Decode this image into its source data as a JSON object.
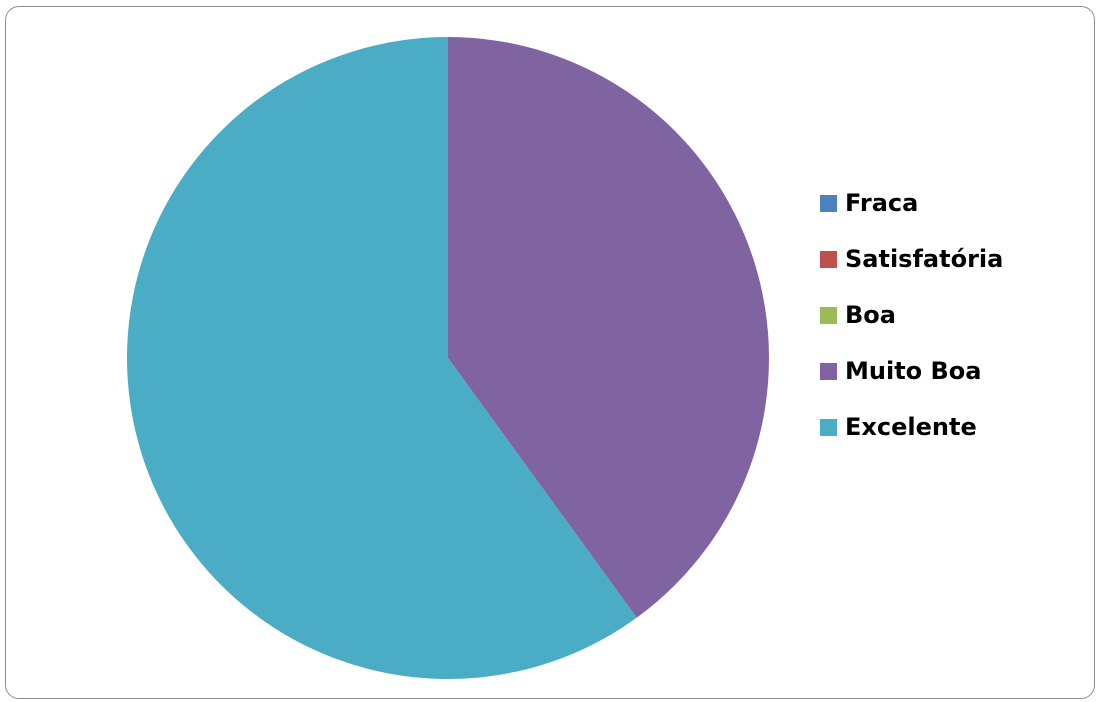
{
  "chart_data": {
    "type": "pie",
    "title": "",
    "categories": [
      "Fraca",
      "Satisfatória",
      "Boa",
      "Muito Boa",
      "Excelente"
    ],
    "values": [
      0,
      0,
      0,
      40,
      60
    ],
    "colors": [
      "#4F81BD",
      "#C0504D",
      "#9BBB59",
      "#8064A2",
      "#4BACC6"
    ],
    "start_angle": "12 o'clock",
    "direction": "clockwise",
    "legend_position": "right"
  },
  "legend": {
    "items": [
      {
        "label": "Fraca",
        "color": "#4F81BD"
      },
      {
        "label": "Satisfatória",
        "color": "#C0504D"
      },
      {
        "label": "Boa",
        "color": "#9BBB59"
      },
      {
        "label": "Muito Boa",
        "color": "#8064A2"
      },
      {
        "label": "Excelente",
        "color": "#4BACC6"
      }
    ]
  }
}
